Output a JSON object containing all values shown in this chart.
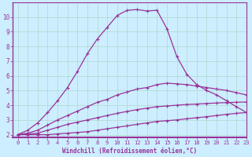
{
  "bg_color": "#cceeff",
  "grid_color": "#b0d8cc",
  "line_color": "#993399",
  "xlabel": "Windchill (Refroidissement éolien,°C)",
  "xlim": [
    -0.5,
    23
  ],
  "ylim": [
    1.8,
    11.0
  ],
  "xticks": [
    0,
    1,
    2,
    3,
    4,
    5,
    6,
    7,
    8,
    9,
    10,
    11,
    12,
    13,
    14,
    15,
    16,
    17,
    18,
    19,
    20,
    21,
    22,
    23
  ],
  "yticks": [
    2,
    3,
    4,
    5,
    6,
    7,
    8,
    9,
    10
  ],
  "curve1_x": [
    0,
    1,
    2,
    3,
    4,
    5,
    6,
    7,
    8,
    9,
    10,
    11,
    12,
    13,
    14,
    15,
    16,
    17,
    18,
    19,
    20,
    21,
    22,
    23
  ],
  "curve1_y": [
    2.0,
    2.3,
    2.8,
    3.5,
    4.3,
    5.2,
    6.3,
    7.5,
    8.5,
    9.3,
    10.1,
    10.45,
    10.5,
    10.4,
    10.45,
    9.2,
    7.3,
    6.1,
    5.4,
    5.0,
    4.7,
    4.3,
    3.9,
    3.5
  ],
  "curve2_x": [
    0,
    1,
    2,
    3,
    4,
    5,
    6,
    7,
    8,
    9,
    10,
    11,
    12,
    13,
    14,
    15,
    16,
    17,
    18,
    19,
    20,
    21,
    22,
    23
  ],
  "curve2_y": [
    2.0,
    2.1,
    2.3,
    2.65,
    3.0,
    3.3,
    3.6,
    3.9,
    4.2,
    4.4,
    4.7,
    4.9,
    5.1,
    5.2,
    5.4,
    5.5,
    5.45,
    5.4,
    5.3,
    5.2,
    5.1,
    5.0,
    4.85,
    4.7
  ],
  "curve3_x": [
    0,
    1,
    2,
    3,
    4,
    5,
    6,
    7,
    8,
    9,
    10,
    11,
    12,
    13,
    14,
    15,
    16,
    17,
    18,
    19,
    20,
    21,
    22,
    23
  ],
  "curve3_y": [
    2.0,
    2.05,
    2.1,
    2.3,
    2.5,
    2.7,
    2.85,
    3.0,
    3.15,
    3.3,
    3.45,
    3.58,
    3.7,
    3.8,
    3.9,
    3.95,
    4.0,
    4.05,
    4.08,
    4.12,
    4.15,
    4.18,
    4.2,
    4.22
  ],
  "curve4_x": [
    0,
    1,
    2,
    3,
    4,
    5,
    6,
    7,
    8,
    9,
    10,
    11,
    12,
    13,
    14,
    15,
    16,
    17,
    18,
    19,
    20,
    21,
    22,
    23
  ],
  "curve4_y": [
    2.0,
    2.0,
    2.0,
    2.0,
    2.05,
    2.1,
    2.15,
    2.2,
    2.3,
    2.4,
    2.5,
    2.6,
    2.7,
    2.8,
    2.9,
    2.95,
    3.0,
    3.08,
    3.15,
    3.22,
    3.3,
    3.38,
    3.45,
    3.5
  ],
  "marker": "+"
}
